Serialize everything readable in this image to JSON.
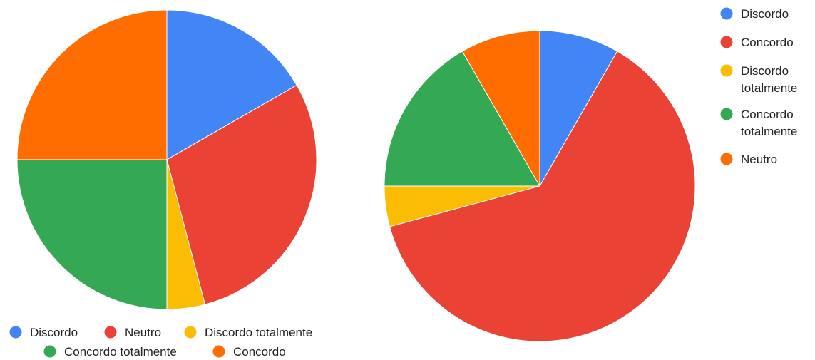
{
  "chart_data": [
    {
      "type": "pie",
      "title": "",
      "slices": [
        {
          "label": "Discordo",
          "value": 16.7,
          "color": "#4285F4"
        },
        {
          "label": "Neutro",
          "value": 29.2,
          "color": "#EA4335"
        },
        {
          "label": "Discordo totalmente",
          "value": 4.1,
          "color": "#FBBC04"
        },
        {
          "label": "Concordo totalmente",
          "value": 25.0,
          "color": "#34A853"
        },
        {
          "label": "Concordo",
          "value": 25.0,
          "color": "#FF6D01"
        }
      ],
      "legend": {
        "position": "bottom",
        "rows": [
          [
            "Discordo",
            "Neutro",
            "Discordo totalmente"
          ],
          [
            "Concordo totalmente",
            "Concordo"
          ]
        ]
      }
    },
    {
      "type": "pie",
      "title": "",
      "slices": [
        {
          "label": "Discordo",
          "value": 8.3,
          "color": "#4285F4"
        },
        {
          "label": "Concordo",
          "value": 62.5,
          "color": "#EA4335"
        },
        {
          "label": "Discordo totalmente",
          "value": 4.2,
          "color": "#FBBC04"
        },
        {
          "label": "Concordo totalmente",
          "value": 16.7,
          "color": "#34A853"
        },
        {
          "label": "Neutro",
          "value": 8.3,
          "color": "#FF6D01"
        }
      ],
      "legend": {
        "position": "right",
        "entries": [
          {
            "lines": [
              "Discordo"
            ],
            "color": "#4285F4"
          },
          {
            "lines": [
              "Concordo"
            ],
            "color": "#EA4335"
          },
          {
            "lines": [
              "Discordo",
              "totalmente"
            ],
            "color": "#FBBC04"
          },
          {
            "lines": [
              "Concordo",
              "totalmente"
            ],
            "color": "#34A853"
          },
          {
            "lines": [
              "Neutro"
            ],
            "color": "#FF6D01"
          }
        ]
      }
    }
  ]
}
